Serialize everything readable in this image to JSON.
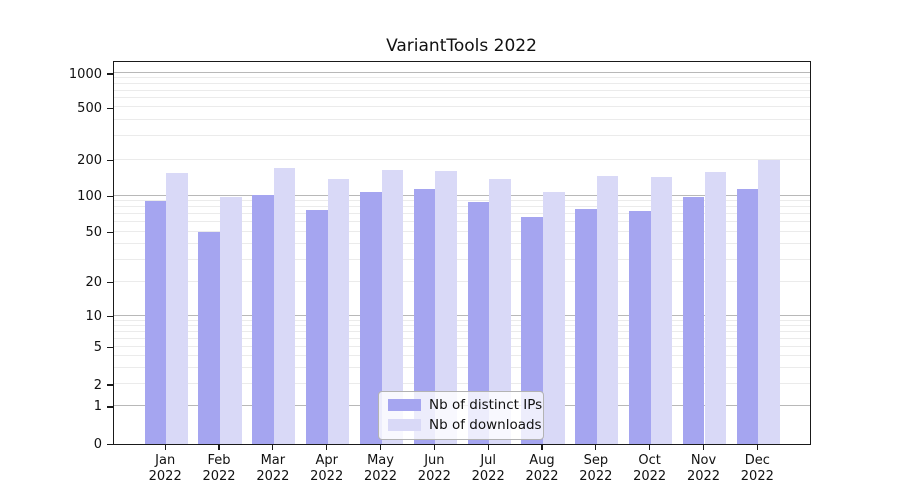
{
  "chart_data": {
    "type": "bar",
    "title": "VariantTools 2022",
    "categories": [
      "Jan",
      "Feb",
      "Mar",
      "Apr",
      "May",
      "Jun",
      "Jul",
      "Aug",
      "Sep",
      "Oct",
      "Nov",
      "Dec"
    ],
    "category_year": "2022",
    "series": [
      {
        "name": "Nb of distinct IPs",
        "color": "#a5a5f0",
        "values": [
          90,
          50,
          102,
          76,
          107,
          114,
          88,
          67,
          78,
          74,
          97,
          114
        ]
      },
      {
        "name": "Nb of downloads",
        "color": "#d9d9f7",
        "values": [
          154,
          97,
          169,
          138,
          165,
          162,
          137,
          107,
          145,
          143,
          157,
          200
        ]
      }
    ],
    "yscale": "symlog",
    "ylim": [
      0,
      1000
    ],
    "y_tick_labels": [
      0,
      1,
      2,
      5,
      10,
      20,
      50,
      100,
      200,
      500,
      1000
    ],
    "grid": "both",
    "legend_position": "lower center",
    "colors": {
      "major_gridline": "#b8b8b8",
      "minor_gridline": "#ebebeb",
      "axis": "#1a1a1a",
      "text": "#111111",
      "background": "#ffffff"
    }
  }
}
